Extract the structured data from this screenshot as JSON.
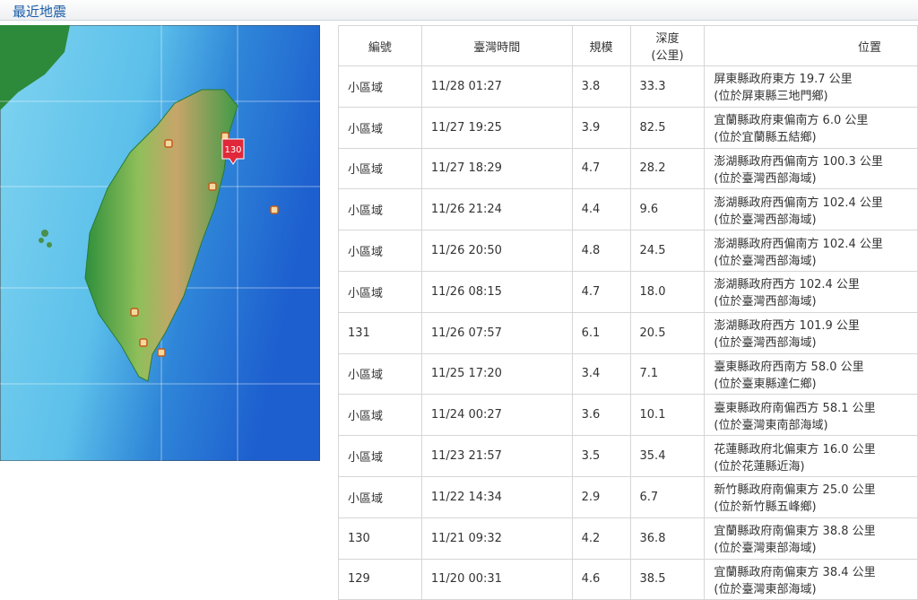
{
  "header": {
    "title": "最近地震"
  },
  "map": {
    "marker_label": "130"
  },
  "table": {
    "headers": [
      "編號",
      "臺灣時間",
      "規模",
      [
        "深度",
        "(公里)"
      ],
      "位置"
    ],
    "rows": [
      [
        "小區域",
        "11/28 01:27",
        "3.8",
        "33.3",
        [
          "屏東縣政府東方 19.7 公里",
          "(位於屏東縣三地門鄉)"
        ]
      ],
      [
        "小區域",
        "11/27 19:25",
        "3.9",
        "82.5",
        [
          "宜蘭縣政府東偏南方 6.0 公里",
          "(位於宜蘭縣五結鄉)"
        ]
      ],
      [
        "小區域",
        "11/27 18:29",
        "4.7",
        "28.2",
        [
          "澎湖縣政府西偏南方 100.3 公里",
          "(位於臺灣西部海域)"
        ]
      ],
      [
        "小區域",
        "11/26 21:24",
        "4.4",
        "9.6",
        [
          "澎湖縣政府西偏南方 102.4 公里",
          "(位於臺灣西部海域)"
        ]
      ],
      [
        "小區域",
        "11/26 20:50",
        "4.8",
        "24.5",
        [
          "澎湖縣政府西偏南方 102.4 公里",
          "(位於臺灣西部海域)"
        ]
      ],
      [
        "小區域",
        "11/26 08:15",
        "4.7",
        "18.0",
        [
          "澎湖縣政府西方 102.4 公里",
          "(位於臺灣西部海域)"
        ]
      ],
      [
        "131",
        "11/26 07:57",
        "6.1",
        "20.5",
        [
          "澎湖縣政府西方 101.9 公里",
          "(位於臺灣西部海域)"
        ]
      ],
      [
        "小區域",
        "11/25 17:20",
        "3.4",
        "7.1",
        [
          "臺東縣政府西南方 58.0 公里",
          "(位於臺東縣達仁鄉)"
        ]
      ],
      [
        "小區域",
        "11/24 00:27",
        "3.6",
        "10.1",
        [
          "臺東縣政府南偏西方 58.1 公里",
          "(位於臺灣東南部海域)"
        ]
      ],
      [
        "小區域",
        "11/23 21:57",
        "3.5",
        "35.4",
        [
          "花蓮縣政府北偏東方 16.0 公里",
          "(位於花蓮縣近海)"
        ]
      ],
      [
        "小區域",
        "11/22 14:34",
        "2.9",
        "6.7",
        [
          "新竹縣政府南偏東方 25.0 公里",
          "(位於新竹縣五峰鄉)"
        ]
      ],
      [
        "130",
        "11/21 09:32",
        "4.2",
        "36.8",
        [
          "宜蘭縣政府南偏東方 38.8 公里",
          "(位於臺灣東部海域)"
        ]
      ],
      [
        "129",
        "11/20 00:31",
        "4.6",
        "38.5",
        [
          "宜蘭縣政府南偏東方 38.4 公里",
          "(位於臺灣東部海域)"
        ]
      ]
    ]
  }
}
